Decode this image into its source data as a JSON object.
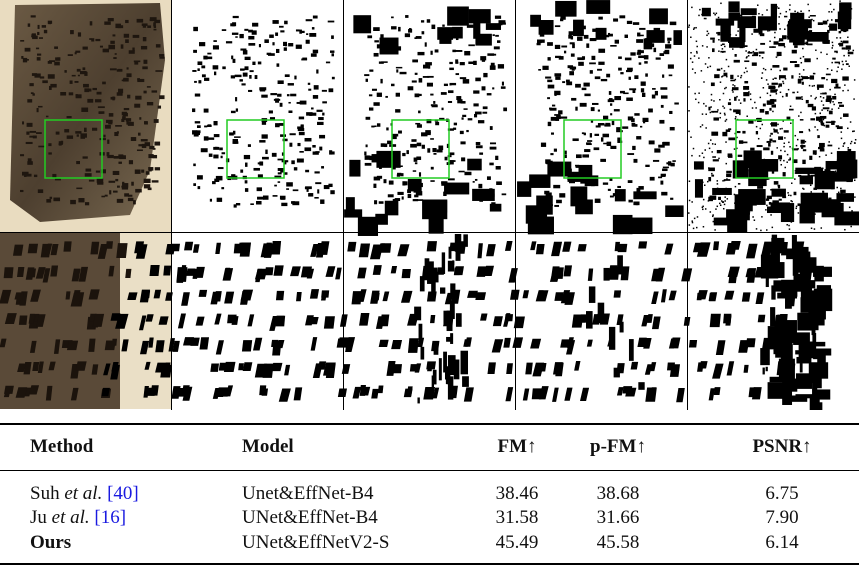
{
  "table": {
    "header": [
      "Method",
      "Model",
      "FM↑",
      "p-FM↑",
      "PSNR↑"
    ],
    "rows": [
      {
        "method": {
          "name": "Suh",
          "etal": "et al.",
          "ref": "[40]"
        },
        "model": "Unet&EffNet-B4",
        "fm": "38.46",
        "pfm": "38.68",
        "psnr": "6.75"
      },
      {
        "method": {
          "name": "Ju",
          "etal": "et al.",
          "ref": "[16]"
        },
        "model": "UNet&EffNet-B4",
        "fm": "31.58",
        "pfm": "31.66",
        "psnr": "7.90"
      },
      {
        "method": {
          "name": "Ours"
        },
        "model": "UNet&EffNetV2-S",
        "fm": "45.49",
        "pfm": "45.58",
        "psnr": "6.14"
      }
    ]
  }
}
